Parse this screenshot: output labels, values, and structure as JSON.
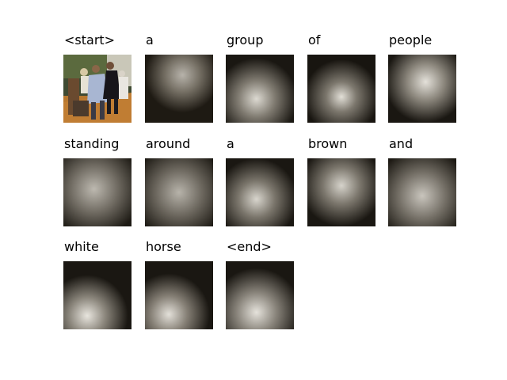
{
  "caption_words": [
    {
      "word": "<start>",
      "attention": "none"
    },
    {
      "word": "a",
      "attention": "upper-center"
    },
    {
      "word": "group",
      "attention": "lower-center"
    },
    {
      "word": "of",
      "attention": "lower-center"
    },
    {
      "word": "people",
      "attention": "upper-center"
    },
    {
      "word": "standing",
      "attention": "diffuse"
    },
    {
      "word": "around",
      "attention": "diffuse"
    },
    {
      "word": "a",
      "attention": "lower-center"
    },
    {
      "word": "brown",
      "attention": "upper-center"
    },
    {
      "word": "and",
      "attention": "diffuse"
    },
    {
      "word": "white",
      "attention": "lower-left"
    },
    {
      "word": "horse",
      "attention": "lower-left"
    },
    {
      "word": "<end>",
      "attention": "lower-center"
    }
  ]
}
